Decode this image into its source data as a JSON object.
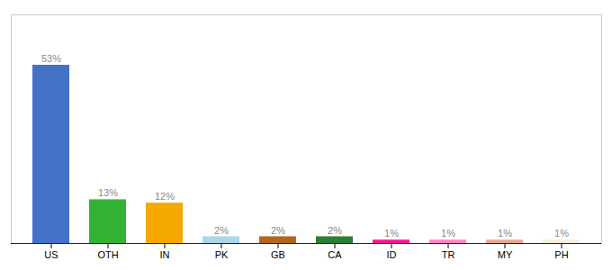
{
  "chart_data": {
    "type": "bar",
    "categories": [
      "US",
      "OTH",
      "IN",
      "PK",
      "GB",
      "CA",
      "ID",
      "TR",
      "MY",
      "PH"
    ],
    "values": [
      53,
      13,
      12,
      2,
      2,
      2,
      1,
      1,
      1,
      1
    ],
    "value_labels": [
      "53%",
      "13%",
      "12%",
      "2%",
      "2%",
      "2%",
      "1%",
      "1%",
      "1%",
      "1%"
    ],
    "colors": [
      "#4472c9",
      "#33b233",
      "#f5a800",
      "#a8d8ea",
      "#b5651d",
      "#2e7d32",
      "#ff1493",
      "#ff85c2",
      "#e8a898",
      "#f5f0dc"
    ],
    "ylim": [
      0,
      68
    ],
    "yticks": [],
    "grid": false,
    "data_labels": true,
    "tick_labels": "x"
  }
}
